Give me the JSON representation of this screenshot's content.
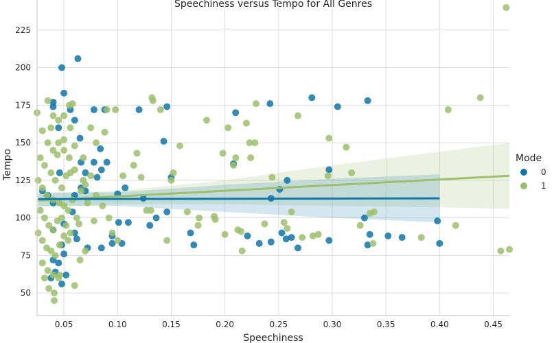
{
  "chart_data": {
    "type": "scatter",
    "title": "Speechiness versus Tempo for All Genres",
    "xlabel": "Speechiness",
    "ylabel": "Tempo",
    "xlim": [
      0.025,
      0.465
    ],
    "ylim": [
      35,
      245
    ],
    "xticks": [
      0.05,
      0.1,
      0.15,
      0.2,
      0.25,
      0.3,
      0.35,
      0.4,
      0.45
    ],
    "xtick_labels": [
      "0.05",
      "0.10",
      "0.15",
      "0.20",
      "0.25",
      "0.30",
      "0.35",
      "0.40",
      "0.45"
    ],
    "yticks": [
      50,
      75,
      100,
      125,
      150,
      175,
      200,
      225
    ],
    "ytick_labels": [
      "50",
      "75",
      "100",
      "125",
      "150",
      "175",
      "200",
      "225"
    ],
    "grid": true,
    "legend": {
      "title": "Mode",
      "placement": "right"
    },
    "colors": {
      "mode0": "#0e76a8",
      "mode1": "#9cbf6c"
    },
    "series": [
      {
        "name": "0",
        "regression": {
          "x": [
            0.026,
            0.4
          ],
          "y": [
            112.5,
            113.0
          ]
        },
        "band": {
          "x": [
            0.026,
            0.1,
            0.2,
            0.3,
            0.4
          ],
          "lower": [
            108,
            108,
            104,
            100,
            97
          ],
          "upper": [
            117,
            117,
            122,
            126,
            129
          ]
        },
        "points": [
          [
            0.048,
            200
          ],
          [
            0.063,
            206
          ],
          [
            0.05,
            183
          ],
          [
            0.04,
            177
          ],
          [
            0.056,
            172
          ],
          [
            0.06,
            165
          ],
          [
            0.04,
            174
          ],
          [
            0.065,
            153
          ],
          [
            0.045,
            160
          ],
          [
            0.078,
            172
          ],
          [
            0.088,
            172
          ],
          [
            0.084,
            146
          ],
          [
            0.066,
            137
          ],
          [
            0.078,
            137
          ],
          [
            0.09,
            137
          ],
          [
            0.046,
            130
          ],
          [
            0.07,
            130
          ],
          [
            0.081,
            127
          ],
          [
            0.085,
            132
          ],
          [
            0.06,
            115
          ],
          [
            0.07,
            118
          ],
          [
            0.066,
            120
          ],
          [
            0.1,
            116
          ],
          [
            0.107,
            120
          ],
          [
            0.03,
            118
          ],
          [
            0.04,
            110
          ],
          [
            0.035,
            115
          ],
          [
            0.058,
            104
          ],
          [
            0.05,
            96
          ],
          [
            0.04,
            92
          ],
          [
            0.06,
            90
          ],
          [
            0.062,
            86
          ],
          [
            0.072,
            80
          ],
          [
            0.048,
            82
          ],
          [
            0.05,
            76
          ],
          [
            0.04,
            72
          ],
          [
            0.042,
            64
          ],
          [
            0.048,
            56
          ],
          [
            0.052,
            62
          ],
          [
            0.038,
            60
          ],
          [
            0.045,
            70
          ],
          [
            0.12,
            172
          ],
          [
            0.146,
            174
          ],
          [
            0.143,
            151
          ],
          [
            0.095,
            83
          ],
          [
            0.104,
            83
          ],
          [
            0.11,
            97
          ],
          [
            0.101,
            97
          ],
          [
            0.136,
            100
          ],
          [
            0.124,
            113
          ],
          [
            0.13,
            95
          ],
          [
            0.146,
            104
          ],
          [
            0.15,
            127
          ],
          [
            0.21,
            170
          ],
          [
            0.208,
            136
          ],
          [
            0.242,
            176
          ],
          [
            0.258,
            125
          ],
          [
            0.251,
            119
          ],
          [
            0.243,
            113
          ],
          [
            0.281,
            180
          ],
          [
            0.305,
            174
          ],
          [
            0.297,
            132
          ],
          [
            0.333,
            178
          ],
          [
            0.33,
            100
          ],
          [
            0.168,
            90
          ],
          [
            0.171,
            82
          ],
          [
            0.221,
            88
          ],
          [
            0.232,
            83
          ],
          [
            0.243,
            84
          ],
          [
            0.253,
            90
          ],
          [
            0.257,
            86
          ],
          [
            0.262,
            87
          ],
          [
            0.268,
            80
          ],
          [
            0.297,
            85
          ],
          [
            0.335,
            89
          ],
          [
            0.333,
            82
          ],
          [
            0.352,
            88
          ],
          [
            0.365,
            87
          ],
          [
            0.398,
            98
          ],
          [
            0.4,
            83
          ],
          [
            0.095,
            88
          ],
          [
            0.085,
            80
          ]
        ]
      },
      {
        "name": "1",
        "regression": {
          "x": [
            0.026,
            0.465
          ],
          "y": [
            111.5,
            128.0
          ]
        },
        "band": {
          "x": [
            0.026,
            0.1,
            0.2,
            0.3,
            0.4,
            0.465
          ],
          "lower": [
            107,
            109,
            109,
            108,
            107,
            106
          ],
          "upper": [
            116,
            118,
            125,
            135,
            144,
            150
          ]
        },
        "points": [
          [
            0.025,
            170
          ],
          [
            0.035,
            178
          ],
          [
            0.04,
            168
          ],
          [
            0.038,
            160
          ],
          [
            0.045,
            165
          ],
          [
            0.05,
            168
          ],
          [
            0.055,
            175
          ],
          [
            0.058,
            176
          ],
          [
            0.03,
            158
          ],
          [
            0.035,
            150
          ],
          [
            0.04,
            145
          ],
          [
            0.045,
            150
          ],
          [
            0.05,
            145
          ],
          [
            0.055,
            140
          ],
          [
            0.06,
            148
          ],
          [
            0.028,
            140
          ],
          [
            0.032,
            135
          ],
          [
            0.038,
            130
          ],
          [
            0.042,
            125
          ],
          [
            0.048,
            120
          ],
          [
            0.052,
            128
          ],
          [
            0.056,
            130
          ],
          [
            0.026,
            125
          ],
          [
            0.03,
            120
          ],
          [
            0.034,
            115
          ],
          [
            0.04,
            112
          ],
          [
            0.046,
            110
          ],
          [
            0.05,
            108
          ],
          [
            0.054,
            105
          ],
          [
            0.058,
            112
          ],
          [
            0.028,
            105
          ],
          [
            0.032,
            100
          ],
          [
            0.036,
            95
          ],
          [
            0.04,
            92
          ],
          [
            0.044,
            98
          ],
          [
            0.048,
            100
          ],
          [
            0.052,
            95
          ],
          [
            0.056,
            90
          ],
          [
            0.026,
            90
          ],
          [
            0.03,
            85
          ],
          [
            0.034,
            80
          ],
          [
            0.038,
            78
          ],
          [
            0.042,
            75
          ],
          [
            0.046,
            82
          ],
          [
            0.05,
            88
          ],
          [
            0.054,
            85
          ],
          [
            0.03,
            70
          ],
          [
            0.035,
            65
          ],
          [
            0.04,
            62
          ],
          [
            0.045,
            60
          ],
          [
            0.032,
            60
          ],
          [
            0.041,
            50
          ],
          [
            0.041,
            45
          ],
          [
            0.036,
            53
          ],
          [
            0.046,
            62
          ],
          [
            0.06,
            55
          ],
          [
            0.065,
            72
          ],
          [
            0.068,
            125
          ],
          [
            0.075,
            128
          ],
          [
            0.075,
            160
          ],
          [
            0.088,
            157
          ],
          [
            0.098,
            172
          ],
          [
            0.115,
            135
          ],
          [
            0.118,
            143
          ],
          [
            0.122,
            127
          ],
          [
            0.127,
            105
          ],
          [
            0.131,
            105
          ],
          [
            0.132,
            180
          ],
          [
            0.133,
            178
          ],
          [
            0.14,
            172
          ],
          [
            0.146,
            85
          ],
          [
            0.15,
            125
          ],
          [
            0.152,
            130
          ],
          [
            0.158,
            148
          ],
          [
            0.165,
            104
          ],
          [
            0.175,
            95
          ],
          [
            0.176,
            100
          ],
          [
            0.183,
            165
          ],
          [
            0.19,
            101
          ],
          [
            0.191,
            99
          ],
          [
            0.198,
            143
          ],
          [
            0.2,
            89
          ],
          [
            0.203,
            160
          ],
          [
            0.208,
            135
          ],
          [
            0.21,
            140
          ],
          [
            0.212,
            92
          ],
          [
            0.215,
            91
          ],
          [
            0.216,
            78
          ],
          [
            0.22,
            163
          ],
          [
            0.223,
            150
          ],
          [
            0.224,
            140
          ],
          [
            0.228,
            150
          ],
          [
            0.229,
            176
          ],
          [
            0.237,
            96
          ],
          [
            0.244,
            127
          ],
          [
            0.255,
            97
          ],
          [
            0.258,
            93
          ],
          [
            0.262,
            104
          ],
          [
            0.268,
            168
          ],
          [
            0.272,
            87
          ],
          [
            0.282,
            88
          ],
          [
            0.287,
            89
          ],
          [
            0.297,
            153
          ],
          [
            0.296,
            128
          ],
          [
            0.313,
            147
          ],
          [
            0.318,
            130
          ],
          [
            0.326,
            95
          ],
          [
            0.335,
            103
          ],
          [
            0.339,
            104
          ],
          [
            0.338,
            83
          ],
          [
            0.383,
            87
          ],
          [
            0.408,
            172
          ],
          [
            0.415,
            95
          ],
          [
            0.438,
            180
          ],
          [
            0.457,
            78
          ],
          [
            0.462,
            240
          ],
          [
            0.465,
            79
          ],
          [
            0.09,
            172
          ],
          [
            0.08,
            150
          ],
          [
            0.095,
            90
          ],
          [
            0.1,
            85
          ],
          [
            0.105,
            128
          ],
          [
            0.068,
            140
          ],
          [
            0.07,
            78
          ],
          [
            0.072,
            110
          ],
          [
            0.062,
            100
          ],
          [
            0.064,
            96
          ],
          [
            0.066,
            118
          ],
          [
            0.056,
            160
          ],
          [
            0.05,
            152
          ],
          [
            0.044,
            142
          ],
          [
            0.06,
            132
          ],
          [
            0.07,
            122
          ],
          [
            0.08,
            115
          ],
          [
            0.086,
            108
          ],
          [
            0.092,
            100
          ],
          [
            0.078,
            98
          ]
        ]
      }
    ]
  }
}
